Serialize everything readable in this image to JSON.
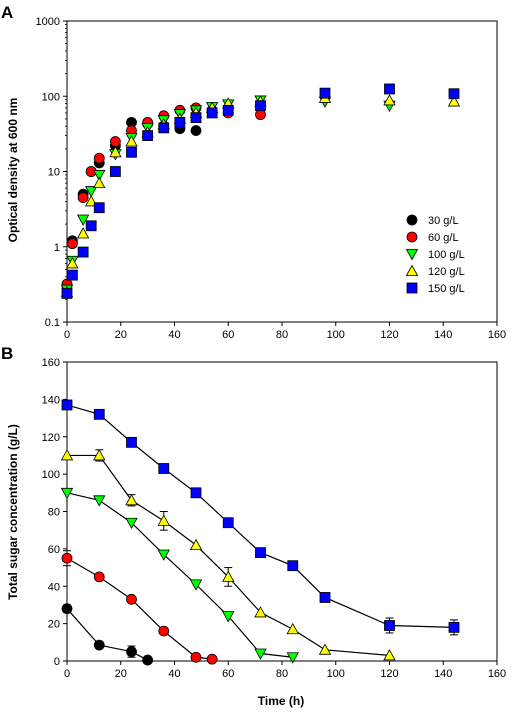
{
  "chart_data": [
    {
      "panel_label": "A",
      "type": "scatter",
      "ylabel": "Optical density at 600 nm",
      "xlabel": "",
      "xlim": [
        0,
        160
      ],
      "ylim": [
        0.1,
        1000
      ],
      "yscale": "log",
      "xticks": [
        0,
        20,
        40,
        60,
        80,
        100,
        120,
        140,
        160
      ],
      "yticks": [
        0.1,
        1,
        10,
        100,
        1000
      ],
      "ytick_labels": [
        "0.1",
        "1",
        "10",
        "100",
        "1000"
      ],
      "legend_position": "lower-right",
      "series": [
        {
          "name": "30 g/L",
          "marker": "circle",
          "color": "#000000",
          "x": [
            0,
            2,
            6,
            9,
            12,
            18,
            24,
            30,
            36,
            42,
            48
          ],
          "y": [
            0.3,
            1.2,
            5.0,
            10.0,
            13.0,
            22.0,
            45.0,
            43.0,
            40.0,
            37.0,
            35.0
          ]
        },
        {
          "name": "60 g/L",
          "marker": "circle",
          "color": "#ff0000",
          "x": [
            0,
            2,
            6,
            9,
            12,
            18,
            24,
            30,
            36,
            42,
            48,
            54,
            60,
            72
          ],
          "y": [
            0.32,
            1.1,
            4.5,
            10.0,
            15.0,
            25.0,
            35.0,
            45.0,
            55.0,
            65.0,
            70.0,
            65.0,
            60.0,
            57.0
          ]
        },
        {
          "name": "100 g/L",
          "marker": "triangle-down",
          "color": "#00ff00",
          "x": [
            0,
            2,
            6,
            9,
            12,
            18,
            24,
            30,
            36,
            42,
            48,
            54,
            60,
            72,
            96,
            120
          ],
          "y": [
            0.27,
            0.65,
            2.3,
            5.5,
            9.0,
            17.0,
            28.0,
            38.0,
            48.0,
            58.0,
            65.0,
            72.0,
            78.0,
            88.0,
            85.0,
            75.0
          ]
        },
        {
          "name": "120 g/L",
          "marker": "triangle-up",
          "color": "#ffff00",
          "x": [
            0,
            2,
            6,
            9,
            12,
            18,
            24,
            30,
            36,
            42,
            48,
            54,
            60,
            72,
            96,
            120,
            144
          ],
          "y": [
            0.25,
            0.6,
            1.5,
            4.0,
            7.0,
            18.0,
            25.0,
            33.0,
            42.0,
            50.0,
            60.0,
            70.0,
            80.0,
            85.0,
            95.0,
            88.0,
            85.0
          ]
        },
        {
          "name": "150 g/L",
          "marker": "square",
          "color": "#0000ff",
          "x": [
            0,
            2,
            6,
            9,
            12,
            18,
            24,
            30,
            36,
            42,
            48,
            54,
            60,
            72,
            96,
            120,
            144
          ],
          "y": [
            0.24,
            0.42,
            0.85,
            1.9,
            3.3,
            10.0,
            18.0,
            30.0,
            38.0,
            45.0,
            52.0,
            60.0,
            65.0,
            75.0,
            110.0,
            125.0,
            108.0
          ]
        }
      ]
    },
    {
      "panel_label": "B",
      "type": "line",
      "ylabel": "Total sugar concentration (g/L)",
      "xlabel": "Time (h)",
      "xlim": [
        0,
        160
      ],
      "ylim": [
        0,
        160
      ],
      "xticks": [
        0,
        20,
        40,
        60,
        80,
        100,
        120,
        140,
        160
      ],
      "yticks": [
        0,
        20,
        40,
        60,
        80,
        100,
        120,
        140,
        160
      ],
      "series": [
        {
          "marker": "circle",
          "color": "#000000",
          "x": [
            0,
            12,
            24,
            30
          ],
          "y": [
            28,
            8.5,
            5,
            0.5
          ],
          "err": [
            2,
            0,
            3,
            0
          ]
        },
        {
          "marker": "circle",
          "color": "#ff0000",
          "x": [
            0,
            12,
            24,
            36,
            48,
            54
          ],
          "y": [
            55,
            45,
            33,
            16,
            2,
            1
          ],
          "err": [
            4,
            0,
            0,
            0,
            0,
            0
          ]
        },
        {
          "marker": "triangle-down",
          "color": "#00ff00",
          "x": [
            0,
            12,
            24,
            36,
            48,
            60,
            72,
            84
          ],
          "y": [
            90,
            86,
            74,
            57,
            41,
            24,
            4,
            2
          ],
          "err": [
            0,
            0,
            0,
            0,
            0,
            0,
            0,
            0
          ]
        },
        {
          "marker": "triangle-up",
          "color": "#ffff00",
          "x": [
            0,
            12,
            24,
            36,
            48,
            60,
            72,
            84,
            96,
            120
          ],
          "y": [
            110,
            110,
            86,
            75,
            62,
            45,
            26,
            17,
            6,
            3
          ],
          "err": [
            0,
            3,
            3,
            5,
            0,
            5,
            0,
            0,
            0,
            0
          ]
        },
        {
          "marker": "square",
          "color": "#0000ff",
          "x": [
            0,
            12,
            24,
            36,
            48,
            60,
            72,
            84,
            96,
            120,
            144
          ],
          "y": [
            137,
            132,
            117,
            103,
            90,
            74,
            58,
            51,
            34,
            19,
            18
          ],
          "err": [
            0,
            0,
            0,
            0,
            0,
            0,
            0,
            0,
            0,
            4,
            4
          ]
        }
      ]
    }
  ]
}
